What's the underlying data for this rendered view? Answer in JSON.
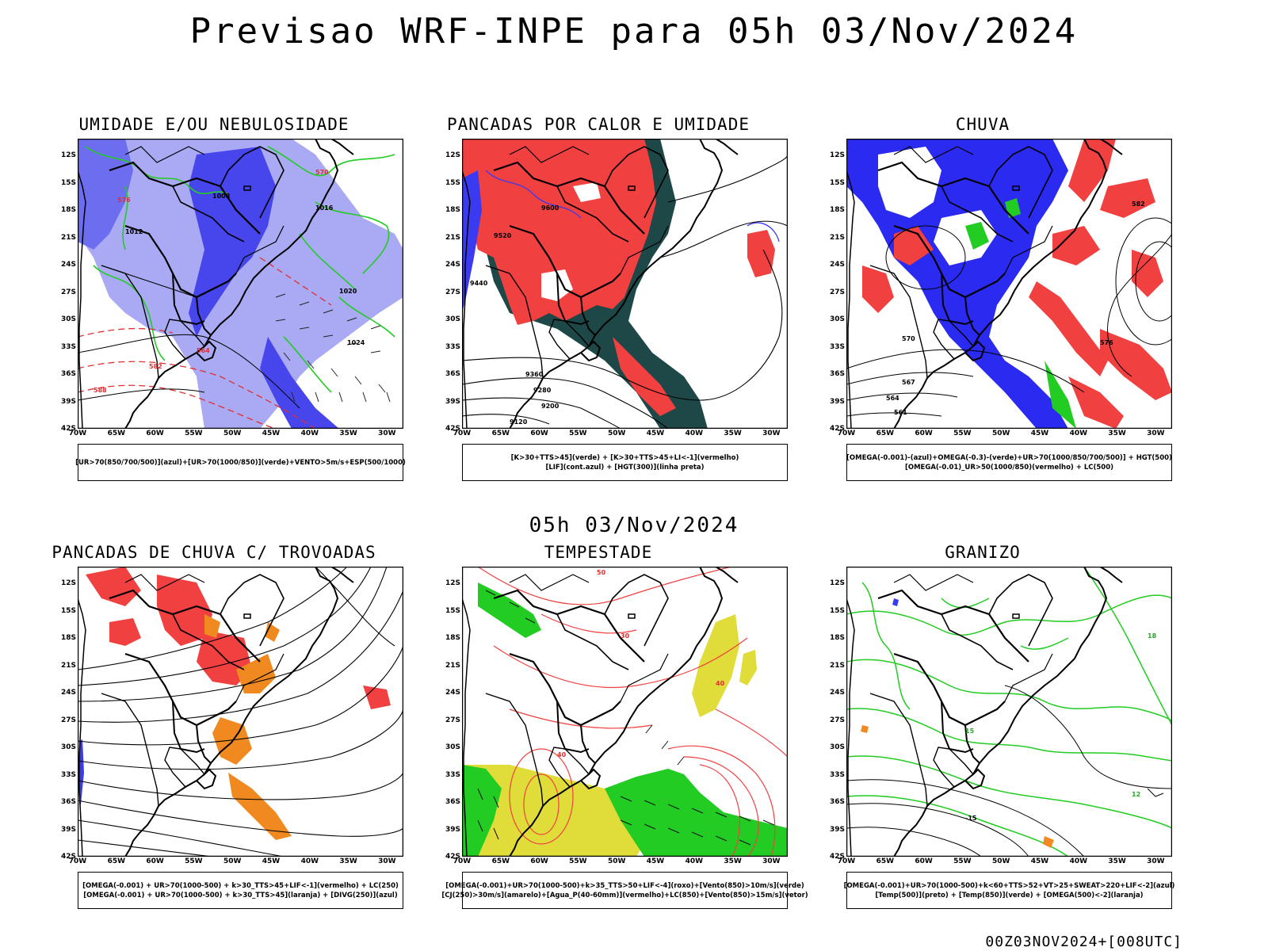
{
  "title": "Previsao WRF-INPE  para 05h 03/Nov/2024",
  "subtitle": "05h 03/Nov/2024",
  "footer": "00Z03NOV2024+[008UTC]",
  "axes": {
    "lat_labels": [
      "12S",
      "15S",
      "18S",
      "21S",
      "24S",
      "27S",
      "30S",
      "33S",
      "36S",
      "39S",
      "42S"
    ],
    "lon_labels": [
      "70W",
      "65W",
      "60W",
      "55W",
      "50W",
      "45W",
      "40W",
      "35W",
      "30W"
    ]
  },
  "colors": {
    "blue": "#3a3af0",
    "lightblue": "#9b9bf2",
    "green": "#22cc22",
    "red": "#f04040",
    "orange": "#f08a20",
    "darkteal": "#1e4848",
    "yellow": "#e0dc3a",
    "black": "#000000"
  },
  "panels": [
    {
      "title": "UMIDADE E/OU NEBULOSIDADE",
      "legend": [
        "[UR>70(850/700/500)](azul)+[UR>70(1000/850)](verde)+VENTO>5m/s+ESP(500/1000)"
      ],
      "contour_labels": [
        "1008",
        "1012",
        "1016",
        "1020",
        "1024",
        "576",
        "570",
        "582",
        "588",
        "564"
      ]
    },
    {
      "title": "PANCADAS POR CALOR E UMIDADE",
      "legend": [
        "[K>30+TTS>45](verde) + [K>30+TTS>45+LI<-1](vermelho)",
        "[LIF](cont.azul) + [HGT(300)](linha preta)"
      ],
      "contour_labels": [
        "9600",
        "9520",
        "9440",
        "9360",
        "9280",
        "9200",
        "9120"
      ]
    },
    {
      "title": "CHUVA",
      "legend": [
        "[OMEGA(-0.001)-(azul)+OMEGA(-0.3)-(verde)+UR>70(1000/850/700/500)] + HGT(500)",
        "[OMEGA(-0.01)_UR>50(1000/850)(vermelho) + LC(500)"
      ],
      "contour_labels": [
        "582",
        "576",
        "570",
        "567",
        "564",
        "561"
      ]
    },
    {
      "title": "PANCADAS DE CHUVA C/ TROVOADAS",
      "legend": [
        "[OMEGA(-0.001) + UR>70(1000-500) + k>30_TTS>45+LIF<-1](vermelho) + LC(250)",
        "[OMEGA(-0.001) + UR>70(1000-500) + k>30_TTS>45](laranja) + [DIVG(250)](azul)"
      ],
      "contour_labels": []
    },
    {
      "title": "TEMPESTADE",
      "legend": [
        "[OMEGA(-0.001)+UR>70(1000-500)+k>35_TTS>50+LIF<-4](roxo)+[Vento(850)>10m/s](verde)",
        "[CJ(250)>30m/s](amarelo)+[Agua_P(40-60mm)](vermelho)+LC(850)+[Vento(850)>15m/s](vetor)"
      ],
      "contour_labels": [
        "50",
        "40",
        "40",
        "30"
      ]
    },
    {
      "title": "GRANIZO",
      "legend": [
        "[OMEGA(-0.001)+UR>70(1000-500)+k<60+TTS>52+VT>25+SWEAT>220+LIF<-2](azul)",
        "[Temp(500)](preto) + [Temp(850)](verde) + [OMEGA(500)<-2](laranja)"
      ],
      "contour_labels": [
        "-15",
        "12",
        "15",
        "18"
      ]
    }
  ]
}
